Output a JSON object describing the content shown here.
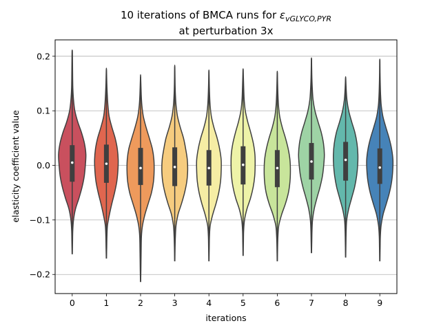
{
  "chart_data": {
    "type": "violin",
    "title_line1_prefix": "10 iterations of BMCA runs for ",
    "title_symbol": "ε",
    "title_subscript": "vGLYCO,PYR",
    "title_line2": "at perturbation 3x",
    "xlabel": "iterations",
    "ylabel": "elasticity coefficient value",
    "ylim": [
      -0.235,
      0.23
    ],
    "yticks": [
      0.2,
      0.1,
      0.0,
      -0.1,
      -0.2
    ],
    "ytick_labels": [
      "0.2",
      "0.1",
      "0.0",
      "−0.1",
      "−0.2"
    ],
    "grid": "horizontal",
    "categories": [
      "0",
      "1",
      "2",
      "3",
      "4",
      "5",
      "6",
      "7",
      "8",
      "9"
    ],
    "colors": [
      "#c9505e",
      "#e0664f",
      "#ee9a5c",
      "#f6cc7f",
      "#f6eda4",
      "#eef3a8",
      "#c8e59b",
      "#9ed3a5",
      "#63b8ac",
      "#4683b8"
    ],
    "series": [
      {
        "category": "0",
        "min": -0.162,
        "max": 0.21,
        "q1": -0.03,
        "median": 0.005,
        "q3": 0.037,
        "density": [
          [
            -0.162,
            0.001
          ],
          [
            -0.14,
            0.003
          ],
          [
            -0.12,
            0.005
          ],
          [
            -0.1,
            0.012
          ],
          [
            -0.08,
            0.03
          ],
          [
            -0.06,
            0.062
          ],
          [
            -0.04,
            0.09
          ],
          [
            -0.02,
            0.11
          ],
          [
            0.0,
            0.12
          ],
          [
            0.02,
            0.125
          ],
          [
            0.04,
            0.112
          ],
          [
            0.06,
            0.085
          ],
          [
            0.08,
            0.05
          ],
          [
            0.1,
            0.024
          ],
          [
            0.12,
            0.012
          ],
          [
            0.14,
            0.006
          ],
          [
            0.16,
            0.004
          ],
          [
            0.18,
            0.003
          ],
          [
            0.2,
            0.002
          ],
          [
            0.21,
            0.001
          ]
        ]
      },
      {
        "category": "1",
        "min": -0.17,
        "max": 0.175,
        "q1": -0.032,
        "median": 0.003,
        "q3": 0.038,
        "density": [
          [
            -0.17,
            0.001
          ],
          [
            -0.15,
            0.003
          ],
          [
            -0.13,
            0.005
          ],
          [
            -0.11,
            0.01
          ],
          [
            -0.09,
            0.028
          ],
          [
            -0.07,
            0.05
          ],
          [
            -0.05,
            0.075
          ],
          [
            -0.03,
            0.095
          ],
          [
            -0.01,
            0.105
          ],
          [
            0.01,
            0.108
          ],
          [
            0.03,
            0.1
          ],
          [
            0.05,
            0.08
          ],
          [
            0.07,
            0.05
          ],
          [
            0.09,
            0.025
          ],
          [
            0.11,
            0.014
          ],
          [
            0.13,
            0.008
          ],
          [
            0.15,
            0.004
          ],
          [
            0.175,
            0.001
          ]
        ]
      },
      {
        "category": "2",
        "min": -0.213,
        "max": 0.162,
        "q1": -0.036,
        "median": -0.005,
        "q3": 0.032,
        "density": [
          [
            -0.213,
            0.001
          ],
          [
            -0.19,
            0.003
          ],
          [
            -0.16,
            0.005
          ],
          [
            -0.13,
            0.008
          ],
          [
            -0.11,
            0.018
          ],
          [
            -0.09,
            0.04
          ],
          [
            -0.07,
            0.07
          ],
          [
            -0.05,
            0.1
          ],
          [
            -0.03,
            0.118
          ],
          [
            -0.01,
            0.124
          ],
          [
            0.01,
            0.122
          ],
          [
            0.03,
            0.108
          ],
          [
            0.05,
            0.08
          ],
          [
            0.07,
            0.05
          ],
          [
            0.09,
            0.025
          ],
          [
            0.11,
            0.012
          ],
          [
            0.13,
            0.006
          ],
          [
            0.162,
            0.001
          ]
        ]
      },
      {
        "category": "3",
        "min": -0.175,
        "max": 0.18,
        "q1": -0.038,
        "median": -0.003,
        "q3": 0.033,
        "density": [
          [
            -0.175,
            0.001
          ],
          [
            -0.15,
            0.003
          ],
          [
            -0.13,
            0.006
          ],
          [
            -0.11,
            0.012
          ],
          [
            -0.09,
            0.03
          ],
          [
            -0.07,
            0.062
          ],
          [
            -0.05,
            0.09
          ],
          [
            -0.03,
            0.11
          ],
          [
            -0.01,
            0.118
          ],
          [
            0.01,
            0.115
          ],
          [
            0.03,
            0.1
          ],
          [
            0.05,
            0.08
          ],
          [
            0.07,
            0.05
          ],
          [
            0.09,
            0.025
          ],
          [
            0.11,
            0.012
          ],
          [
            0.13,
            0.006
          ],
          [
            0.15,
            0.003
          ],
          [
            0.18,
            0.001
          ]
        ]
      },
      {
        "category": "4",
        "min": -0.175,
        "max": 0.172,
        "q1": -0.037,
        "median": -0.005,
        "q3": 0.028,
        "density": [
          [
            -0.175,
            0.001
          ],
          [
            -0.15,
            0.003
          ],
          [
            -0.13,
            0.005
          ],
          [
            -0.11,
            0.012
          ],
          [
            -0.09,
            0.035
          ],
          [
            -0.07,
            0.065
          ],
          [
            -0.05,
            0.09
          ],
          [
            -0.03,
            0.106
          ],
          [
            -0.01,
            0.112
          ],
          [
            0.01,
            0.112
          ],
          [
            0.03,
            0.098
          ],
          [
            0.05,
            0.075
          ],
          [
            0.07,
            0.045
          ],
          [
            0.09,
            0.022
          ],
          [
            0.11,
            0.011
          ],
          [
            0.13,
            0.006
          ],
          [
            0.15,
            0.003
          ],
          [
            0.172,
            0.001
          ]
        ]
      },
      {
        "category": "5",
        "min": -0.165,
        "max": 0.175,
        "q1": -0.035,
        "median": 0.001,
        "q3": 0.035,
        "density": [
          [
            -0.165,
            0.001
          ],
          [
            -0.14,
            0.003
          ],
          [
            -0.12,
            0.005
          ],
          [
            -0.1,
            0.013
          ],
          [
            -0.08,
            0.035
          ],
          [
            -0.06,
            0.068
          ],
          [
            -0.04,
            0.092
          ],
          [
            -0.02,
            0.106
          ],
          [
            0.0,
            0.11
          ],
          [
            0.02,
            0.108
          ],
          [
            0.04,
            0.094
          ],
          [
            0.06,
            0.07
          ],
          [
            0.08,
            0.042
          ],
          [
            0.1,
            0.02
          ],
          [
            0.12,
            0.01
          ],
          [
            0.14,
            0.006
          ],
          [
            0.16,
            0.003
          ],
          [
            0.175,
            0.001
          ]
        ]
      },
      {
        "category": "6",
        "min": -0.175,
        "max": 0.17,
        "q1": -0.04,
        "median": -0.005,
        "q3": 0.028,
        "density": [
          [
            -0.175,
            0.001
          ],
          [
            -0.15,
            0.003
          ],
          [
            -0.13,
            0.006
          ],
          [
            -0.11,
            0.014
          ],
          [
            -0.09,
            0.04
          ],
          [
            -0.07,
            0.075
          ],
          [
            -0.05,
            0.102
          ],
          [
            -0.03,
            0.116
          ],
          [
            -0.01,
            0.12
          ],
          [
            0.01,
            0.116
          ],
          [
            0.03,
            0.1
          ],
          [
            0.05,
            0.075
          ],
          [
            0.07,
            0.045
          ],
          [
            0.09,
            0.022
          ],
          [
            0.11,
            0.011
          ],
          [
            0.13,
            0.006
          ],
          [
            0.15,
            0.003
          ],
          [
            0.17,
            0.001
          ]
        ]
      },
      {
        "category": "7",
        "min": -0.16,
        "max": 0.195,
        "q1": -0.026,
        "median": 0.007,
        "q3": 0.041,
        "density": [
          [
            -0.16,
            0.001
          ],
          [
            -0.14,
            0.003
          ],
          [
            -0.12,
            0.005
          ],
          [
            -0.1,
            0.01
          ],
          [
            -0.08,
            0.025
          ],
          [
            -0.06,
            0.05
          ],
          [
            -0.04,
            0.078
          ],
          [
            -0.02,
            0.1
          ],
          [
            0.0,
            0.112
          ],
          [
            0.02,
            0.118
          ],
          [
            0.04,
            0.11
          ],
          [
            0.06,
            0.09
          ],
          [
            0.08,
            0.06
          ],
          [
            0.1,
            0.032
          ],
          [
            0.12,
            0.015
          ],
          [
            0.14,
            0.008
          ],
          [
            0.16,
            0.004
          ],
          [
            0.18,
            0.002
          ],
          [
            0.195,
            0.001
          ]
        ]
      },
      {
        "category": "8",
        "min": -0.168,
        "max": 0.16,
        "q1": -0.028,
        "median": 0.01,
        "q3": 0.043,
        "density": [
          [
            -0.168,
            0.001
          ],
          [
            -0.14,
            0.003
          ],
          [
            -0.12,
            0.005
          ],
          [
            -0.1,
            0.01
          ],
          [
            -0.08,
            0.028
          ],
          [
            -0.06,
            0.055
          ],
          [
            -0.04,
            0.082
          ],
          [
            -0.02,
            0.1
          ],
          [
            0.0,
            0.11
          ],
          [
            0.02,
            0.112
          ],
          [
            0.04,
            0.104
          ],
          [
            0.06,
            0.085
          ],
          [
            0.08,
            0.055
          ],
          [
            0.1,
            0.028
          ],
          [
            0.12,
            0.012
          ],
          [
            0.14,
            0.005
          ],
          [
            0.16,
            0.001
          ]
        ]
      },
      {
        "category": "9",
        "min": -0.175,
        "max": 0.192,
        "q1": -0.034,
        "median": -0.004,
        "q3": 0.031,
        "density": [
          [
            -0.175,
            0.001
          ],
          [
            -0.15,
            0.003
          ],
          [
            -0.13,
            0.005
          ],
          [
            -0.11,
            0.012
          ],
          [
            -0.09,
            0.03
          ],
          [
            -0.07,
            0.06
          ],
          [
            -0.05,
            0.088
          ],
          [
            -0.03,
            0.108
          ],
          [
            -0.01,
            0.118
          ],
          [
            0.01,
            0.12
          ],
          [
            0.03,
            0.108
          ],
          [
            0.05,
            0.085
          ],
          [
            0.07,
            0.055
          ],
          [
            0.09,
            0.028
          ],
          [
            0.11,
            0.013
          ],
          [
            0.13,
            0.007
          ],
          [
            0.15,
            0.004
          ],
          [
            0.17,
            0.002
          ],
          [
            0.192,
            0.001
          ]
        ]
      }
    ]
  }
}
